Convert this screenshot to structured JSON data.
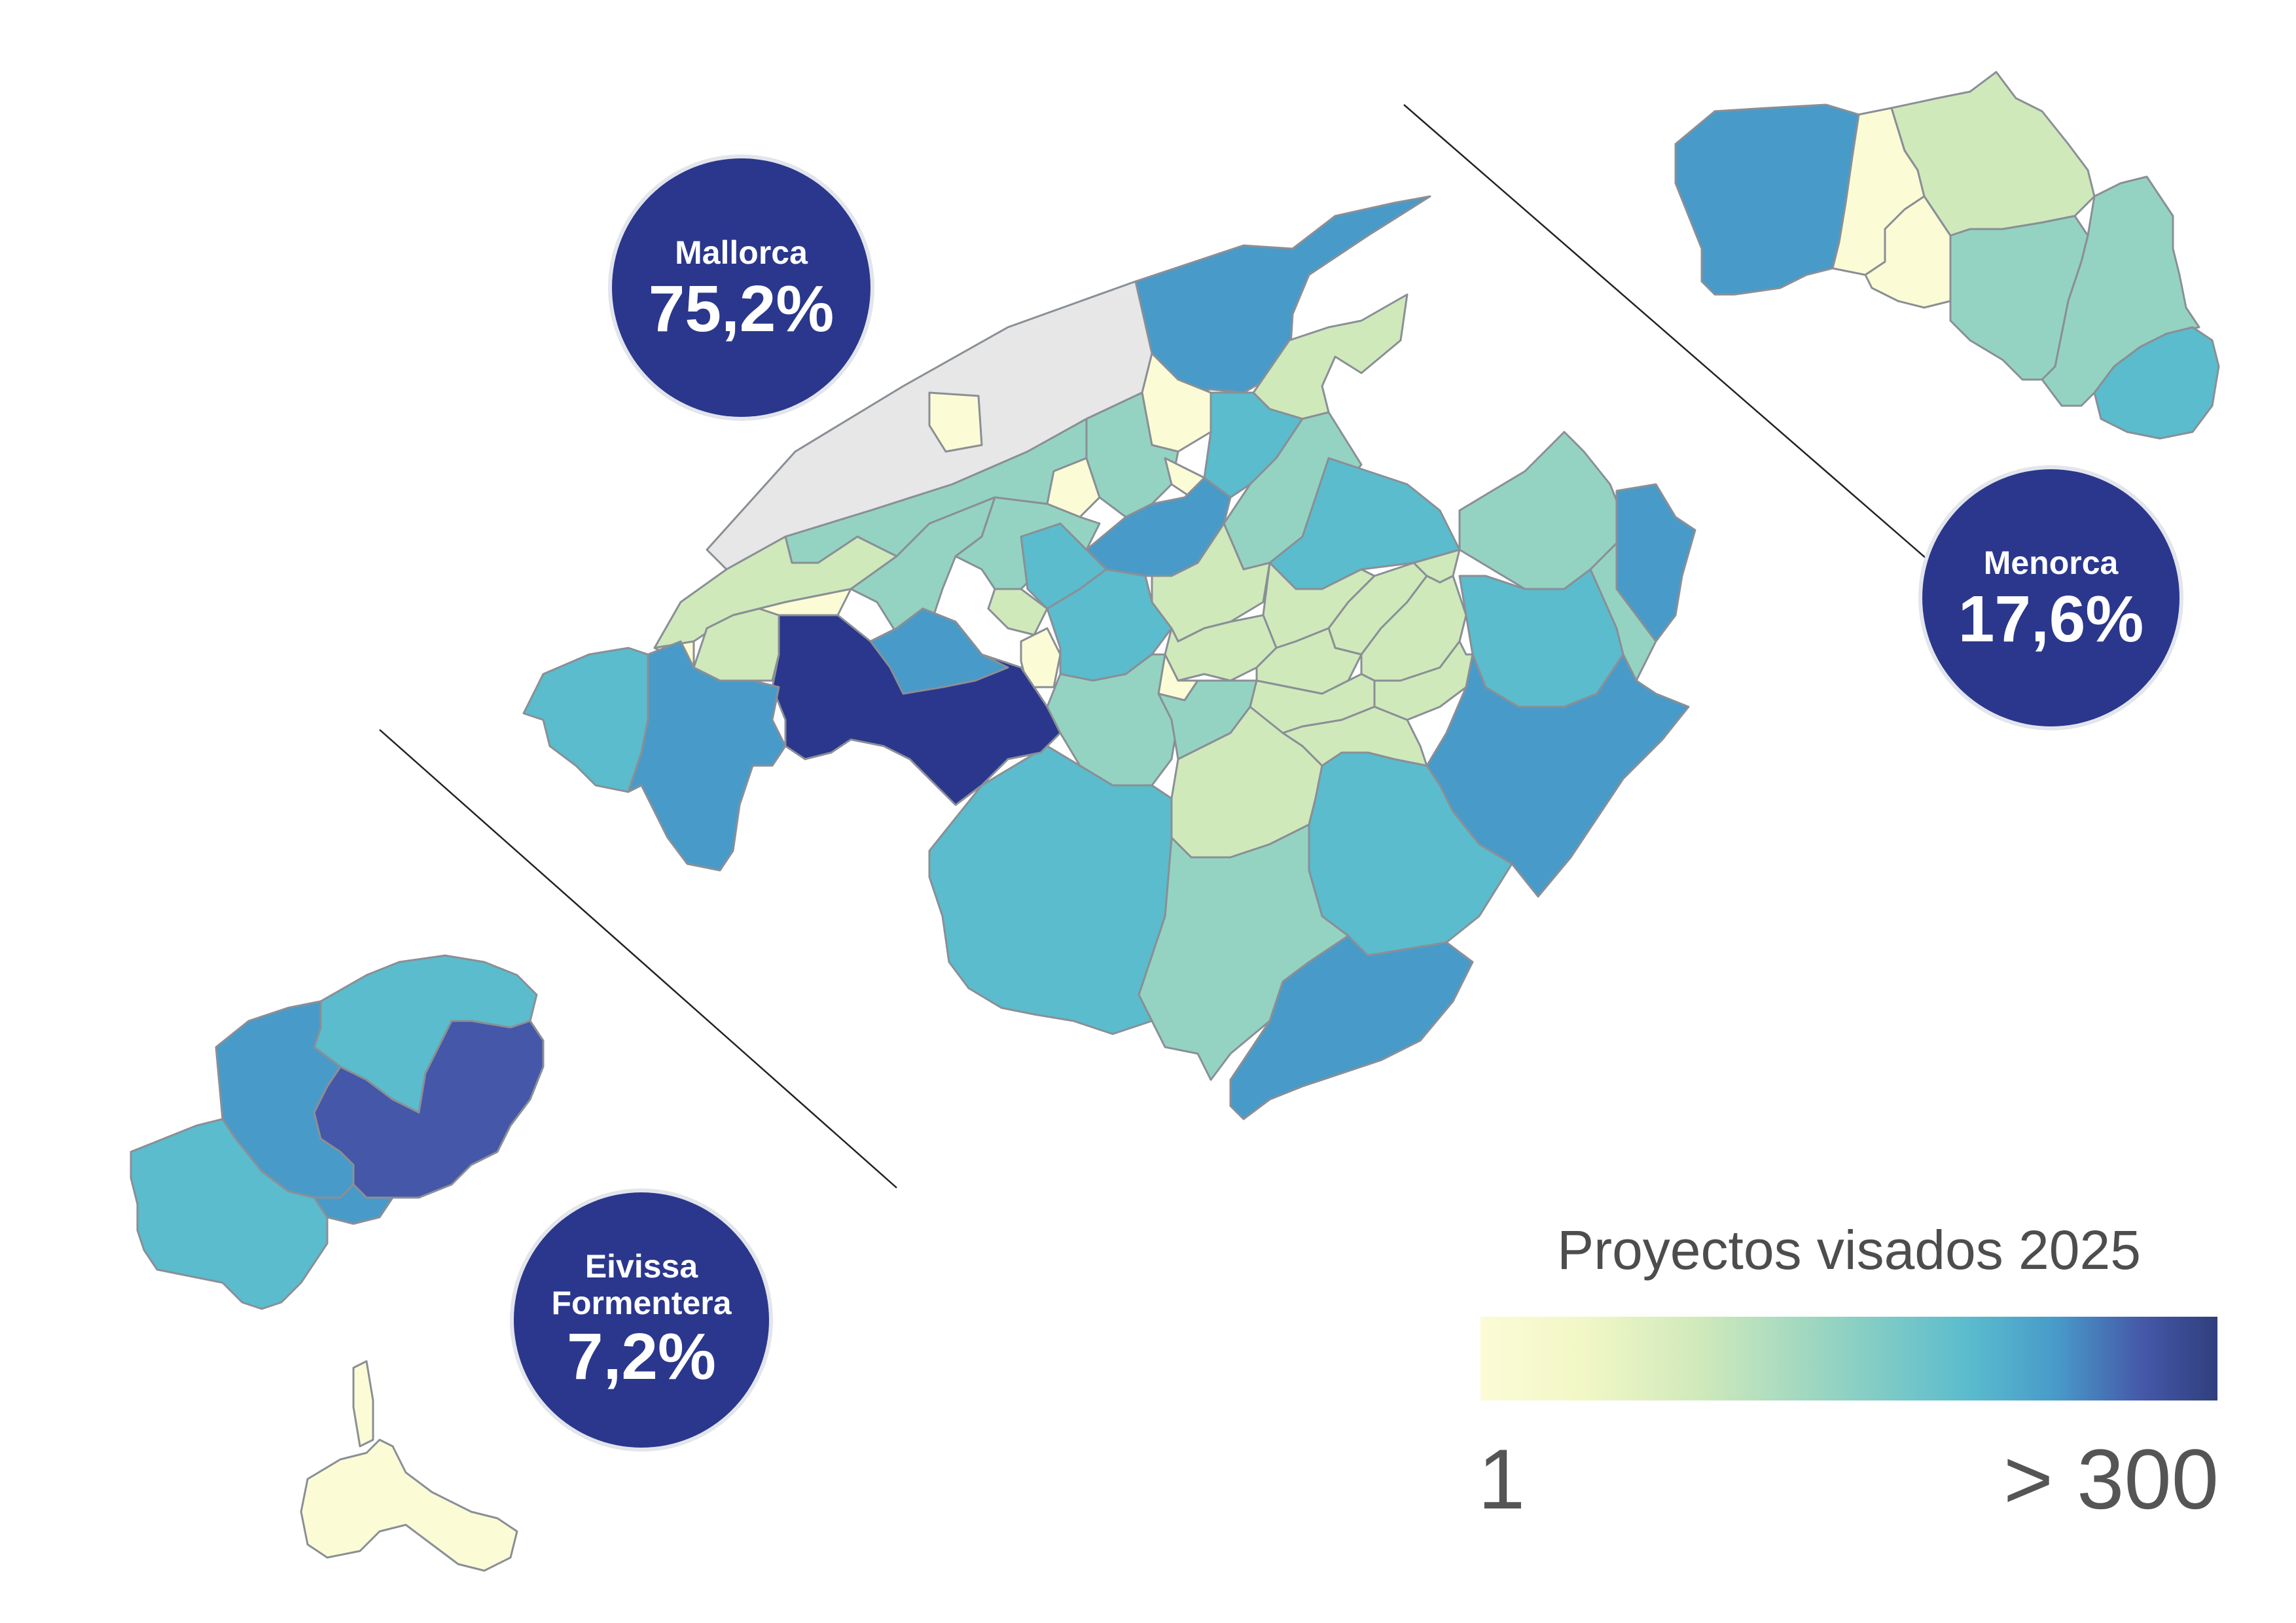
{
  "islands": {
    "mallorca": {
      "name": "Mallorca",
      "share": "75,2%"
    },
    "menorca": {
      "name": "Menorca",
      "share": "17,6%"
    },
    "eivissa_formentera": {
      "name_line1": "Eivissa",
      "name_line2": "Formentera",
      "share": "7,2%"
    }
  },
  "legend": {
    "title": "Proyectos visados 2025",
    "min_label": "1",
    "max_label": "> 300",
    "scale": {
      "min": 1,
      "max": 300
    },
    "colors": [
      "#fbfbd6",
      "#cfe9bb",
      "#94d3c2",
      "#5bbccd",
      "#489bc9",
      "#4557a8",
      "#2f3f7d"
    ],
    "no_data_color": "#e6e7e6"
  }
}
